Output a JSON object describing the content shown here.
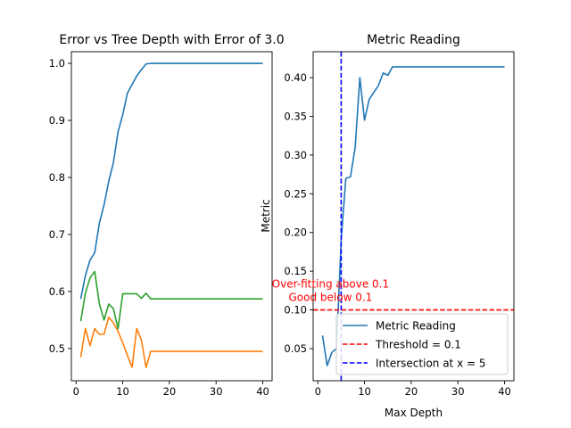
{
  "chart_data": [
    {
      "type": "line",
      "title": "Error vs Tree Depth with Error of 3.0",
      "xlabel": "",
      "ylabel": "",
      "xlim": [
        -1,
        42
      ],
      "ylim": [
        0.4435,
        1.0205
      ],
      "xticks": [
        0,
        10,
        20,
        30,
        40
      ],
      "yticks": [
        0.5,
        0.6,
        0.7,
        0.8,
        0.9,
        1.0
      ],
      "ytick_labels": [
        "0.5",
        "0.6",
        "0.7",
        "0.8",
        "0.9",
        "1.0"
      ],
      "grid": false,
      "series": [
        {
          "color": "#1f77b4",
          "x": [
            1,
            2,
            3,
            4,
            5,
            6,
            7,
            8,
            9,
            10,
            11,
            12,
            13,
            14,
            15,
            16,
            17,
            18,
            19,
            20,
            21,
            22,
            23,
            24,
            25,
            26,
            27,
            28,
            29,
            30,
            31,
            32,
            33,
            34,
            35,
            36,
            37,
            38,
            39,
            40
          ],
          "values": [
            0.587,
            0.628,
            0.655,
            0.668,
            0.72,
            0.752,
            0.793,
            0.826,
            0.88,
            0.91,
            0.948,
            0.963,
            0.978,
            0.989,
            0.999,
            1.0,
            1.0,
            1.0,
            1.0,
            1.0,
            1.0,
            1.0,
            1.0,
            1.0,
            1.0,
            1.0,
            1.0,
            1.0,
            1.0,
            1.0,
            1.0,
            1.0,
            1.0,
            1.0,
            1.0,
            1.0,
            1.0,
            1.0,
            1.0,
            1.0
          ]
        },
        {
          "color": "#ff7f0e",
          "x": [
            1,
            2,
            3,
            4,
            5,
            6,
            7,
            8,
            9,
            10,
            11,
            12,
            13,
            14,
            15,
            16,
            17,
            18,
            19,
            20,
            21,
            22,
            23,
            24,
            25,
            26,
            27,
            28,
            29,
            30,
            31,
            32,
            33,
            34,
            35,
            36,
            37,
            38,
            39,
            40
          ],
          "values": [
            0.485,
            0.535,
            0.505,
            0.535,
            0.525,
            0.525,
            0.555,
            0.545,
            0.53,
            0.51,
            0.488,
            0.467,
            0.535,
            0.515,
            0.467,
            0.495,
            0.495,
            0.495,
            0.495,
            0.495,
            0.495,
            0.495,
            0.495,
            0.495,
            0.495,
            0.495,
            0.495,
            0.495,
            0.495,
            0.495,
            0.495,
            0.495,
            0.495,
            0.495,
            0.495,
            0.495,
            0.495,
            0.495,
            0.495,
            0.495
          ]
        },
        {
          "color": "#2ca02c",
          "x": [
            1,
            2,
            3,
            4,
            5,
            6,
            7,
            8,
            9,
            10,
            11,
            12,
            13,
            14,
            15,
            16,
            17,
            18,
            19,
            20,
            21,
            22,
            23,
            24,
            25,
            26,
            27,
            28,
            29,
            30,
            31,
            32,
            33,
            34,
            35,
            36,
            37,
            38,
            39,
            40
          ],
          "values": [
            0.548,
            0.597,
            0.624,
            0.635,
            0.578,
            0.55,
            0.578,
            0.57,
            0.535,
            0.596,
            0.596,
            0.596,
            0.596,
            0.588,
            0.597,
            0.587,
            0.587,
            0.587,
            0.587,
            0.587,
            0.587,
            0.587,
            0.587,
            0.587,
            0.587,
            0.587,
            0.587,
            0.587,
            0.587,
            0.587,
            0.587,
            0.587,
            0.587,
            0.587,
            0.587,
            0.587,
            0.587,
            0.587,
            0.587,
            0.587
          ]
        }
      ]
    },
    {
      "type": "line",
      "title": "Metric Reading",
      "xlabel": "Max Depth",
      "ylabel": "Metric",
      "xlim": [
        -1,
        42
      ],
      "ylim": [
        0.0085,
        0.4335
      ],
      "xticks": [
        0,
        10,
        20,
        30,
        40
      ],
      "yticks": [
        0.05,
        0.1,
        0.15,
        0.2,
        0.25,
        0.3,
        0.35,
        0.4
      ],
      "ytick_labels": [
        "0.05",
        "0.10",
        "0.15",
        "0.20",
        "0.25",
        "0.30",
        "0.35",
        "0.40"
      ],
      "grid": false,
      "legend_position": "lower-right",
      "series": [
        {
          "name": "Metric Reading",
          "color": "#1f77b4",
          "x": [
            1,
            2,
            3,
            4,
            5,
            6,
            7,
            8,
            9,
            10,
            11,
            12,
            13,
            14,
            15,
            16,
            17,
            18,
            19,
            20,
            21,
            22,
            23,
            24,
            25,
            26,
            27,
            28,
            29,
            30,
            31,
            32,
            33,
            34,
            35,
            36,
            37,
            38,
            39,
            40
          ],
          "values": [
            0.067,
            0.028,
            0.045,
            0.05,
            0.19,
            0.27,
            0.272,
            0.31,
            0.4,
            0.345,
            0.372,
            0.381,
            0.39,
            0.406,
            0.403,
            0.414,
            0.414,
            0.414,
            0.414,
            0.414,
            0.414,
            0.414,
            0.414,
            0.414,
            0.414,
            0.414,
            0.414,
            0.414,
            0.414,
            0.414,
            0.414,
            0.414,
            0.414,
            0.414,
            0.414,
            0.414,
            0.414,
            0.414,
            0.414,
            0.414
          ]
        }
      ],
      "threshold": {
        "value": 0.1,
        "color": "#ff0000",
        "label": "Threshold = 0.1"
      },
      "intersection": {
        "x": 5,
        "color": "#0000ff",
        "label": "Intersection at x = 5"
      },
      "annotations": [
        {
          "text": "Over-fitting above 0.1",
          "color": "#ff0000",
          "x": 5,
          "y": 0.1,
          "offset": "above"
        },
        {
          "text": "Good below 0.1",
          "color": "#ff0000",
          "x": 5,
          "y": 0.1,
          "offset": "just above"
        }
      ]
    }
  ]
}
